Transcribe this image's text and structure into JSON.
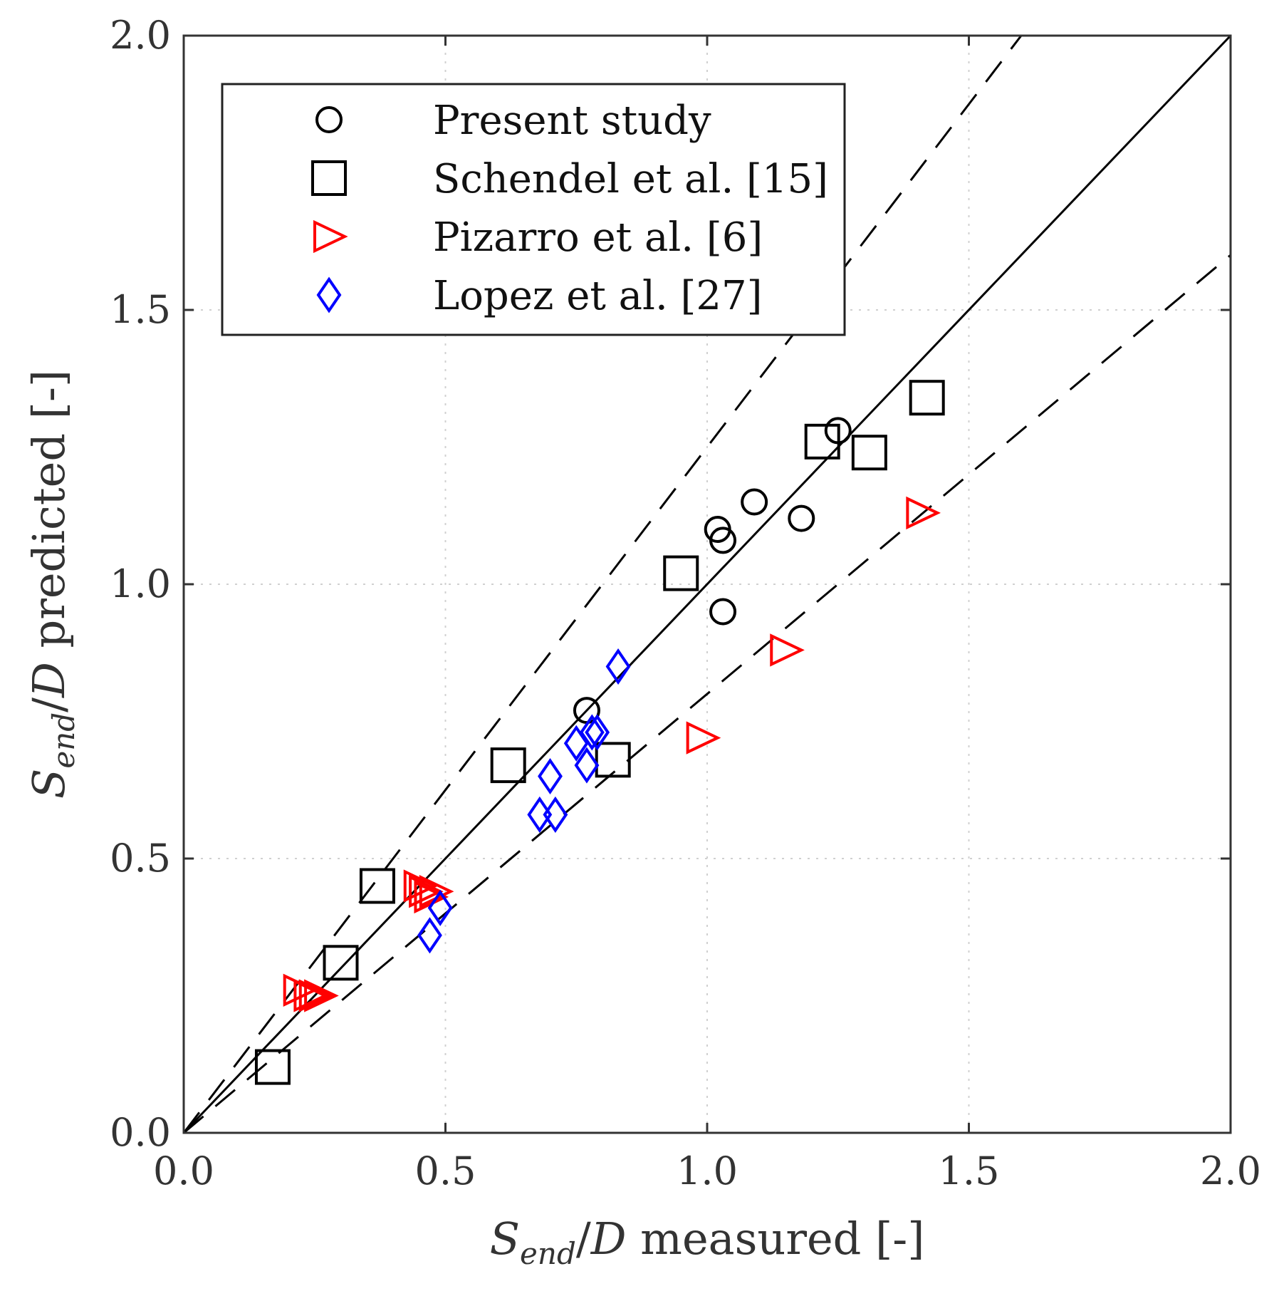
{
  "chart_data": {
    "type": "scatter",
    "title": "",
    "xlabel": "Send/D measured [-]",
    "ylabel": "Send/D predicted [-]",
    "xlabel_parts": {
      "var": "S",
      "sub": "end",
      "slash": "/",
      "den": "D",
      "rest": " measured [-]"
    },
    "ylabel_parts": {
      "var": "S",
      "sub": "end",
      "slash": "/",
      "den": "D",
      "rest": " predicted [-]"
    },
    "xlim": [
      0,
      2
    ],
    "ylim": [
      0,
      2
    ],
    "xticks": [
      "0.0",
      "0.5",
      "1.0",
      "1.5",
      "2.0"
    ],
    "yticks": [
      "0.0",
      "0.5",
      "1.0",
      "1.5",
      "2.0"
    ],
    "grid": true,
    "legend_position": "top-left",
    "reference_lines": [
      {
        "name": "parity-line",
        "slope": 1.0,
        "style": "solid"
      },
      {
        "name": "upper-bound-line",
        "slope": 1.25,
        "style": "dashed"
      },
      {
        "name": "lower-bound-line",
        "slope": 0.8,
        "style": "dashed"
      }
    ],
    "series": [
      {
        "name": "Present study",
        "marker": "circle",
        "color": "#000000",
        "points": [
          [
            1.25,
            1.28
          ],
          [
            1.09,
            1.15
          ],
          [
            1.02,
            1.1
          ],
          [
            1.03,
            1.08
          ],
          [
            1.18,
            1.12
          ],
          [
            1.03,
            0.95
          ],
          [
            0.77,
            0.77
          ]
        ]
      },
      {
        "name": "Schendel et al. [15]",
        "marker": "square",
        "color": "#000000",
        "points": [
          [
            0.17,
            0.12
          ],
          [
            0.3,
            0.31
          ],
          [
            0.37,
            0.45
          ],
          [
            0.62,
            0.67
          ],
          [
            0.82,
            0.68
          ],
          [
            0.95,
            1.02
          ],
          [
            1.22,
            1.26
          ],
          [
            1.31,
            1.24
          ],
          [
            1.42,
            1.34
          ]
        ]
      },
      {
        "name": "Pizarro et al. [6]",
        "marker": "triangle-right",
        "color": "#ff0000",
        "points": [
          [
            0.22,
            0.26
          ],
          [
            0.24,
            0.25
          ],
          [
            0.25,
            0.25
          ],
          [
            0.26,
            0.25
          ],
          [
            0.45,
            0.45
          ],
          [
            0.46,
            0.44
          ],
          [
            0.47,
            0.43
          ],
          [
            0.48,
            0.44
          ],
          [
            0.99,
            0.72
          ],
          [
            1.15,
            0.88
          ],
          [
            1.41,
            1.13
          ]
        ]
      },
      {
        "name": "Lopez et al. [27]",
        "marker": "diamond",
        "color": "#0000ff",
        "points": [
          [
            0.47,
            0.36
          ],
          [
            0.49,
            0.41
          ],
          [
            0.68,
            0.58
          ],
          [
            0.71,
            0.58
          ],
          [
            0.7,
            0.65
          ],
          [
            0.75,
            0.71
          ],
          [
            0.77,
            0.67
          ],
          [
            0.78,
            0.73
          ],
          [
            0.79,
            0.73
          ],
          [
            0.83,
            0.85
          ]
        ]
      }
    ]
  }
}
